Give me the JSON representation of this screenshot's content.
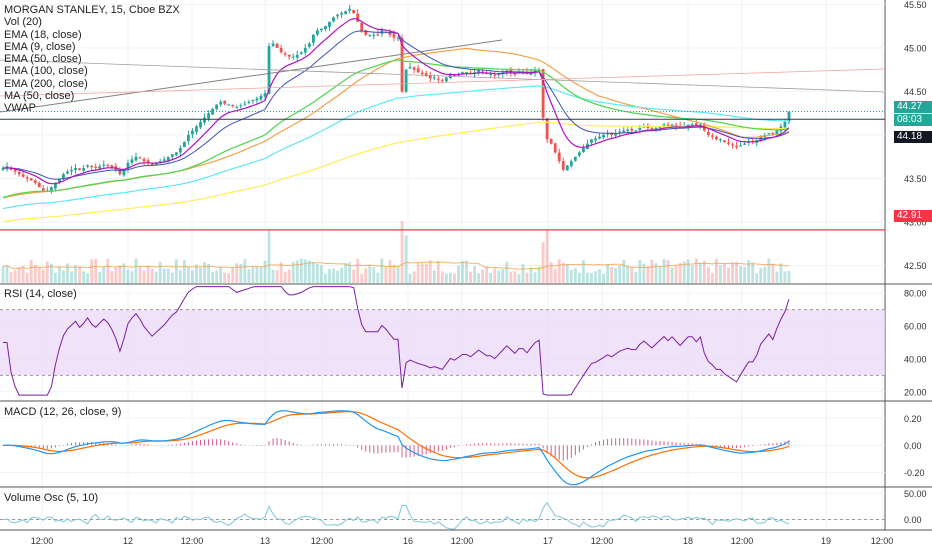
{
  "colors": {
    "up": "#26a69a",
    "down": "#ef5350",
    "ema18": "#3f51b5",
    "ema9": "#b012c0",
    "ema50": "#4cd64c",
    "ema100": "#5fe8f2",
    "ema200": "#ffee58",
    "ma50": "#f4a24b",
    "vwap": "#2b3a4a",
    "hline": "#f23645",
    "rsi": "#7b1fa2",
    "rsiBand": "#e9d5f7",
    "macd": "#2196f3",
    "signal": "#ff6d00",
    "hist": "#c2185b",
    "volosc": "#7fc6d6"
  },
  "legend": {
    "title": "MORGAN STANLEY, 15, Cboe BZX",
    "vol": "Vol (20)",
    "ema18": "EMA (18, close)",
    "ema9": "EMA (9, close)",
    "ema50": "EMA (50, close)",
    "ema100": "EMA (100, close)",
    "ema200": "EMA (200, close)",
    "ma50": "MA (50, close)",
    "vwap": "VWAP"
  },
  "panes": {
    "rsi": "RSI (14, close)",
    "macd": "MACD (12, 26, close, 9)",
    "volosc": "Volume Osc (5, 10)"
  },
  "price_labels": {
    "last": "44.27",
    "countdown": "08:03",
    "vwap": "44.18",
    "hline": "42.91"
  },
  "chart_data": [
    {
      "type": "candlestick",
      "title": "MORGAN STANLEY, 15, Cboe BZX",
      "x_ticks": [
        "12:00",
        "12",
        "12:00",
        "13",
        "12:00",
        "16",
        "12:00",
        "17",
        "12:00",
        "18",
        "12:00",
        "19",
        "12:00"
      ],
      "y_ticks": [
        "45.50",
        "45.00",
        "44.50",
        "44.00",
        "43.50",
        "43.00",
        "42.50"
      ],
      "ylim": [
        42.3,
        45.55
      ],
      "last_price": 44.27,
      "vwap": 44.18,
      "horizontal_line": 42.91,
      "closes": [
        43.62,
        43.64,
        43.6,
        43.58,
        43.55,
        43.52,
        43.5,
        43.48,
        43.45,
        43.4,
        43.36,
        43.35,
        43.4,
        43.45,
        43.5,
        43.55,
        43.58,
        43.6,
        43.62,
        43.6,
        43.62,
        43.65,
        43.63,
        43.62,
        43.64,
        43.66,
        43.65,
        43.63,
        43.6,
        43.55,
        43.6,
        43.68,
        43.72,
        43.75,
        43.73,
        43.7,
        43.68,
        43.66,
        43.68,
        43.7,
        43.72,
        43.75,
        43.78,
        43.8,
        43.85,
        43.92,
        44.0,
        44.05,
        44.1,
        44.15,
        44.2,
        44.25,
        44.3,
        44.35,
        44.38,
        44.36,
        44.35,
        44.33,
        44.32,
        44.34,
        44.36,
        44.38,
        44.4,
        44.42,
        44.45,
        44.48,
        45.02,
        45.05,
        45.0,
        44.95,
        44.92,
        44.9,
        44.9,
        44.92,
        44.95,
        45.0,
        45.05,
        45.15,
        45.2,
        45.22,
        45.25,
        45.3,
        45.35,
        45.38,
        45.4,
        45.42,
        45.45,
        45.4,
        45.3,
        45.2,
        45.15,
        45.15,
        45.15,
        45.15,
        45.2,
        45.18,
        45.15,
        45.12,
        45.12,
        44.5,
        44.75,
        44.78,
        44.75,
        44.72,
        44.7,
        44.68,
        44.65,
        44.66,
        44.64,
        44.62,
        44.66,
        44.7,
        44.68,
        44.7,
        44.72,
        44.72,
        44.7,
        44.72,
        44.74,
        44.72,
        44.7,
        44.7,
        44.68,
        44.7,
        44.72,
        44.74,
        44.72,
        44.7,
        44.72,
        44.72,
        44.7,
        44.72,
        44.74,
        44.75,
        44.2,
        43.95,
        43.9,
        43.8,
        43.7,
        43.6,
        43.65,
        43.7,
        43.75,
        43.8,
        43.85,
        43.9,
        43.95,
        43.96,
        43.98,
        44.0,
        44.02,
        44.0,
        44.02,
        44.04,
        44.05,
        44.06,
        44.05,
        44.05,
        44.08,
        44.1,
        44.08,
        44.06,
        44.08,
        44.1,
        44.12,
        44.1,
        44.12,
        44.1,
        44.08,
        44.1,
        44.12,
        44.12,
        44.1,
        44.12,
        44.05,
        44.0,
        43.98,
        43.95,
        43.95,
        43.92,
        43.9,
        43.88,
        43.86,
        43.88,
        43.9,
        43.92,
        43.92,
        43.94,
        43.98,
        44.0,
        44.02,
        44.0,
        44.05,
        44.1,
        44.15,
        44.27
      ]
    },
    {
      "type": "bar",
      "title": "Vol (20)",
      "volume_ma_period": 20
    },
    {
      "type": "line",
      "title": "RSI (14, close)",
      "y_ticks": [
        "80.00",
        "60.00",
        "40.00",
        "20.00"
      ],
      "ylim": [
        15,
        85
      ],
      "bands": [
        30,
        70
      ]
    },
    {
      "type": "line",
      "title": "MACD (12, 26, close, 9)",
      "y_ticks": [
        "0.20",
        "0.00",
        "-0.20"
      ],
      "ylim": [
        -0.3,
        0.32
      ]
    },
    {
      "type": "line",
      "title": "Volume Osc (5, 10)",
      "y_ticks": [
        "50.00",
        "0.00"
      ],
      "ylim": [
        -20,
        60
      ]
    }
  ]
}
